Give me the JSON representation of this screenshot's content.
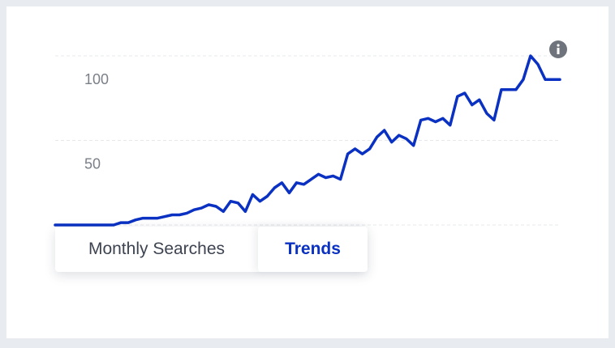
{
  "chart_data": {
    "type": "line",
    "color": "#0a31c2",
    "grid": true,
    "ylim": [
      0,
      100
    ],
    "yticks": [
      50,
      100
    ],
    "values": [
      0,
      0,
      0,
      0,
      0,
      0,
      0,
      0,
      0,
      1.4,
      1.4,
      3,
      4,
      4,
      4,
      5,
      6,
      6,
      7,
      9,
      10,
      12,
      11,
      8,
      14,
      13,
      8,
      18,
      14,
      17,
      22,
      25,
      19,
      25,
      24,
      27,
      30,
      28,
      29,
      27,
      42,
      45,
      42,
      45,
      52,
      56,
      49,
      53,
      51,
      47,
      62,
      63,
      61,
      63,
      59,
      76,
      78,
      71,
      74,
      66,
      62,
      80,
      80,
      80,
      86,
      100,
      95,
      86,
      86,
      86
    ]
  },
  "tabs": [
    "Monthly Searches",
    "Trends"
  ]
}
